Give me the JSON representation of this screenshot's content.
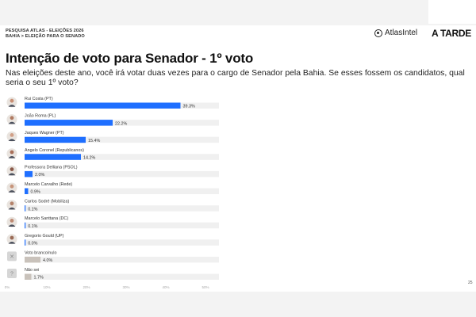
{
  "header": {
    "survey_line": "PESQUISA ATLAS - ELEIÇÕES 2026",
    "breadcrumb": "BAHIA > ELEIÇÃO PARA O SENADO"
  },
  "logos": {
    "atlas": "AtlasIntel",
    "atarde": "A TARDE"
  },
  "title": "Intenção de voto para Senador - 1º voto",
  "subtitle": "Nas eleições deste ano, você irá votar duas vezes para o cargo de Senador pela Bahia. Se esses fossem os candidatos, qual seria o seu 1º voto?",
  "page_number": "25",
  "colors": {
    "bar_primary": "#1f6fff",
    "bar_blank": "#c9c2bb",
    "track": "#f0f0f0"
  },
  "chart_data": {
    "type": "bar",
    "orientation": "horizontal",
    "categories": [
      "Rui Costa (PT)",
      "João Roma (PL)",
      "Jaques Wagner (PT)",
      "Angelo Coronel (Republicanos)",
      "Professora Delliana (PSOL)",
      "Marcelo Carvalho (Rede)",
      "Carlos Sodré (Mobiliza)",
      "Marcelo Santtana (DC)",
      "Gregorio Gould (UP)",
      "Voto branco/nulo",
      "Não sei"
    ],
    "values": [
      39.3,
      22.2,
      15.4,
      14.2,
      2.0,
      0.9,
      0.1,
      0.1,
      0.0,
      4.0,
      1.7
    ],
    "value_labels": [
      "39.3%",
      "22.2%",
      "15.4%",
      "14.2%",
      "2.0%",
      "0.9%",
      "0.1%",
      "0.1%",
      "0.0%",
      "4.0%",
      "1.7%"
    ],
    "avatar_icons": [
      "person-photo",
      "person-photo",
      "person-photo",
      "person-photo",
      "person-photo",
      "person-photo",
      "person-photo",
      "person-photo",
      "person-photo",
      "blank-vote-icon",
      "unknown-icon"
    ],
    "x_ticks": [
      "0%",
      "10%",
      "20%",
      "30%",
      "40%",
      "50%"
    ],
    "xlim": [
      0,
      50
    ],
    "grid": false,
    "legend": "none"
  }
}
